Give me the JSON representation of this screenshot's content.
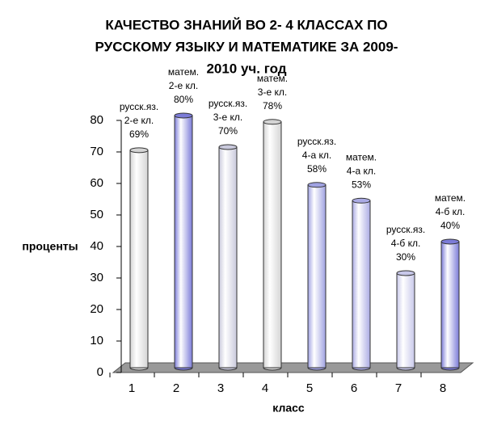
{
  "chart_data": {
    "type": "bar3d",
    "title": [
      "КАЧЕСТВО ЗНАНИЙ ВО 2- 4 КЛАССАХ ПО",
      "РУССКОМУ ЯЗЫКУ И МАТЕМАТИКЕ ЗА 2009-",
      "2010 уч. год"
    ],
    "x_label": "класс",
    "y_label": "проценты",
    "categories": [
      "1",
      "2",
      "3",
      "4",
      "5",
      "6",
      "7",
      "8"
    ],
    "values": [
      69,
      80,
      70,
      78,
      58,
      53,
      30,
      40
    ],
    "subjects": [
      "русск.яз.",
      "матем.",
      "русск.яз.",
      "матем.",
      "русск.яз.",
      "матем.",
      "русск.яз.",
      "матем."
    ],
    "classes": [
      "2-е кл.",
      "2-е кл.",
      "3-е кл.",
      "3-е кл.",
      "4-а кл.",
      "4-а кл.",
      "4-б кл.",
      "4-б кл."
    ],
    "value_labels": [
      "69%",
      "80%",
      "70%",
      "78%",
      "58%",
      "53%",
      "30%",
      "40%"
    ],
    "colors": [
      "#d4d4d4",
      "#7c7cd8",
      "#c9c9dc",
      "#d4d4d4",
      "#a0a2e2",
      "#aaaae4",
      "#c8c8ea",
      "#7c7cd8"
    ],
    "ylim": [
      0,
      80
    ],
    "yticks": [
      0,
      10,
      20,
      30,
      40,
      50,
      60,
      70,
      80
    ]
  }
}
